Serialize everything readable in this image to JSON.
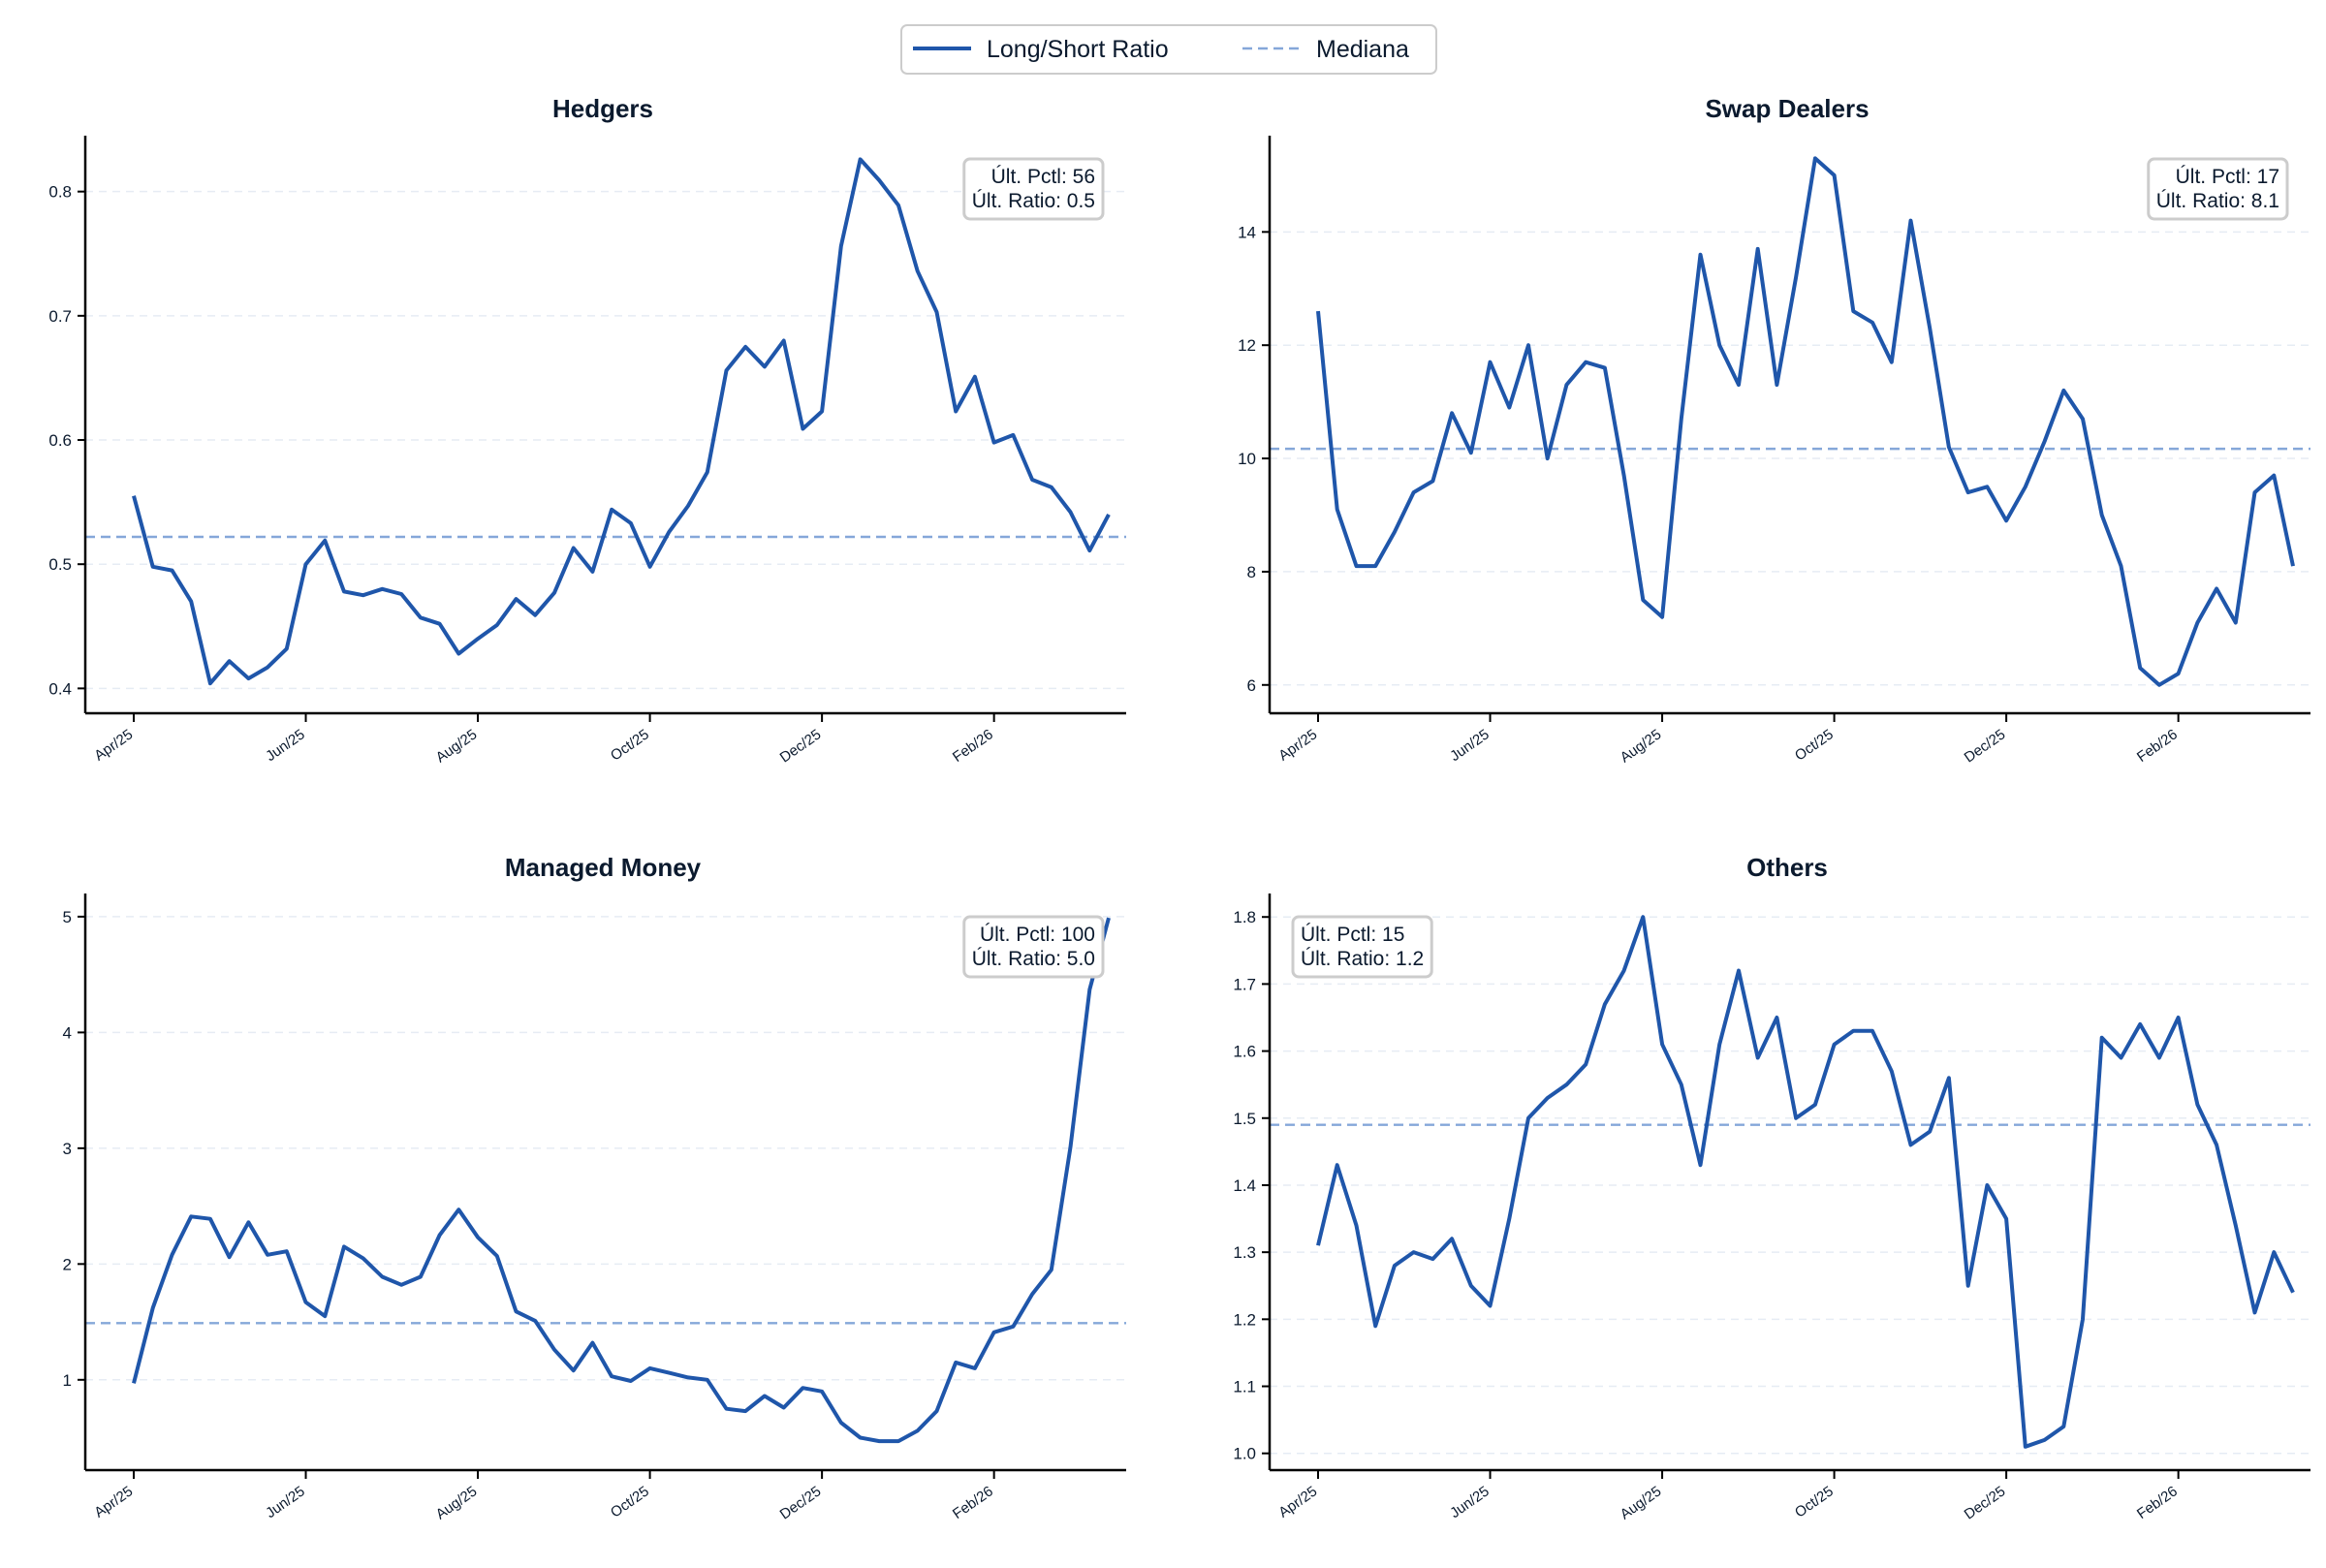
{
  "legend": {
    "items": [
      {
        "label": "Long/Short Ratio",
        "style": "solid",
        "color": "#1f56aa"
      },
      {
        "label": "Mediana",
        "style": "dashed",
        "color": "#85a7d9"
      }
    ]
  },
  "colors": {
    "series": "#1f56aa",
    "median": "#85a7d9",
    "grid": "#e6ecf4",
    "text": "#0b1a2e"
  },
  "x_ticks": [
    "Apr/25",
    "Jun/25",
    "Aug/25",
    "Oct/25",
    "Dec/25",
    "Feb/26"
  ],
  "chart_data": [
    {
      "type": "line",
      "title": "Hedgers",
      "xlabel": "",
      "ylabel": "",
      "ylim": [
        0.38,
        0.845
      ],
      "yticks": [
        0.4,
        0.5,
        0.6,
        0.7,
        0.8
      ],
      "grid": "horizontal-dashed",
      "median": 0.522,
      "annotation": {
        "line1": "Últ. Pctl: 56",
        "line2": "Últ. Ratio: 0.5",
        "placement": "top-right"
      },
      "series": [
        {
          "name": "Long/Short Ratio",
          "values": [
            0.555,
            0.498,
            0.495,
            0.47,
            0.404,
            0.422,
            0.408,
            0.417,
            0.432,
            0.5,
            0.519,
            0.478,
            0.475,
            0.48,
            0.476,
            0.457,
            0.452,
            0.428,
            0.44,
            0.451,
            0.472,
            0.459,
            0.477,
            0.513,
            0.494,
            0.544,
            0.533,
            0.498,
            0.526,
            0.547,
            0.574,
            0.656,
            0.675,
            0.659,
            0.68,
            0.609,
            0.623,
            0.756,
            0.826,
            0.809,
            0.789,
            0.736,
            0.703,
            0.623,
            0.651,
            0.598,
            0.604,
            0.568,
            0.562,
            0.542,
            0.511,
            0.54
          ]
        }
      ]
    },
    {
      "type": "line",
      "title": "Swap Dealers",
      "xlabel": "",
      "ylabel": "",
      "ylim": [
        5.5,
        15.7
      ],
      "yticks": [
        6,
        8,
        10,
        12,
        14
      ],
      "grid": "horizontal-dashed",
      "median": 10.17,
      "annotation": {
        "line1": "Últ. Pctl: 17",
        "line2": "Últ. Ratio: 8.1",
        "placement": "top-right"
      },
      "series": [
        {
          "name": "Long/Short Ratio",
          "values": [
            12.6,
            9.1,
            8.1,
            8.1,
            8.7,
            9.4,
            9.6,
            10.8,
            10.1,
            11.7,
            10.9,
            12.0,
            10.0,
            11.3,
            11.7,
            11.6,
            9.7,
            7.5,
            7.2,
            10.7,
            13.6,
            12.0,
            11.3,
            13.7,
            11.3,
            13.2,
            15.3,
            15.0,
            12.6,
            12.4,
            11.7,
            14.2,
            12.3,
            10.2,
            9.4,
            9.5,
            8.9,
            9.5,
            10.3,
            11.2,
            10.7,
            9.0,
            8.1,
            6.3,
            6.0,
            6.2,
            7.1,
            7.7,
            7.1,
            9.4,
            9.7,
            8.1
          ]
        }
      ]
    },
    {
      "type": "line",
      "title": "Managed Money",
      "xlabel": "",
      "ylabel": "",
      "ylim": [
        0.22,
        5.2
      ],
      "yticks": [
        1,
        2,
        3,
        4,
        5
      ],
      "grid": "horizontal-dashed",
      "median": 1.49,
      "annotation": {
        "line1": "Últ. Pctl: 100",
        "line2": "Últ. Ratio: 5.0",
        "placement": "top-right"
      },
      "series": [
        {
          "name": "Long/Short Ratio",
          "values": [
            0.97,
            1.62,
            2.08,
            2.41,
            2.39,
            2.06,
            2.36,
            2.08,
            2.11,
            1.67,
            1.55,
            2.15,
            2.05,
            1.89,
            1.82,
            1.89,
            2.25,
            2.47,
            2.23,
            2.07,
            1.59,
            1.51,
            1.26,
            1.08,
            1.32,
            1.03,
            0.99,
            1.1,
            1.06,
            1.02,
            1.0,
            0.75,
            0.73,
            0.86,
            0.76,
            0.93,
            0.9,
            0.63,
            0.5,
            0.47,
            0.47,
            0.56,
            0.73,
            1.15,
            1.1,
            1.41,
            1.46,
            1.74,
            1.95,
            3.01,
            4.37,
            4.99
          ]
        }
      ]
    },
    {
      "type": "line",
      "title": "Others",
      "xlabel": "",
      "ylabel": "",
      "ylim": [
        0.975,
        1.835
      ],
      "yticks": [
        1.0,
        1.1,
        1.2,
        1.3,
        1.4,
        1.5,
        1.6,
        1.7,
        1.8
      ],
      "grid": "horizontal-dashed",
      "median": 1.49,
      "annotation": {
        "line1": "Últ. Pctl: 15",
        "line2": "Últ. Ratio: 1.2",
        "placement": "top-left"
      },
      "series": [
        {
          "name": "Long/Short Ratio",
          "values": [
            1.31,
            1.43,
            1.34,
            1.19,
            1.28,
            1.3,
            1.29,
            1.32,
            1.25,
            1.22,
            1.35,
            1.5,
            1.53,
            1.55,
            1.58,
            1.67,
            1.72,
            1.8,
            1.61,
            1.55,
            1.43,
            1.61,
            1.72,
            1.59,
            1.65,
            1.5,
            1.52,
            1.61,
            1.63,
            1.63,
            1.57,
            1.46,
            1.48,
            1.56,
            1.25,
            1.4,
            1.35,
            1.01,
            1.02,
            1.04,
            1.2,
            1.62,
            1.59,
            1.64,
            1.59,
            1.65,
            1.52,
            1.46,
            1.34,
            1.21,
            1.3,
            1.24
          ]
        }
      ]
    }
  ]
}
